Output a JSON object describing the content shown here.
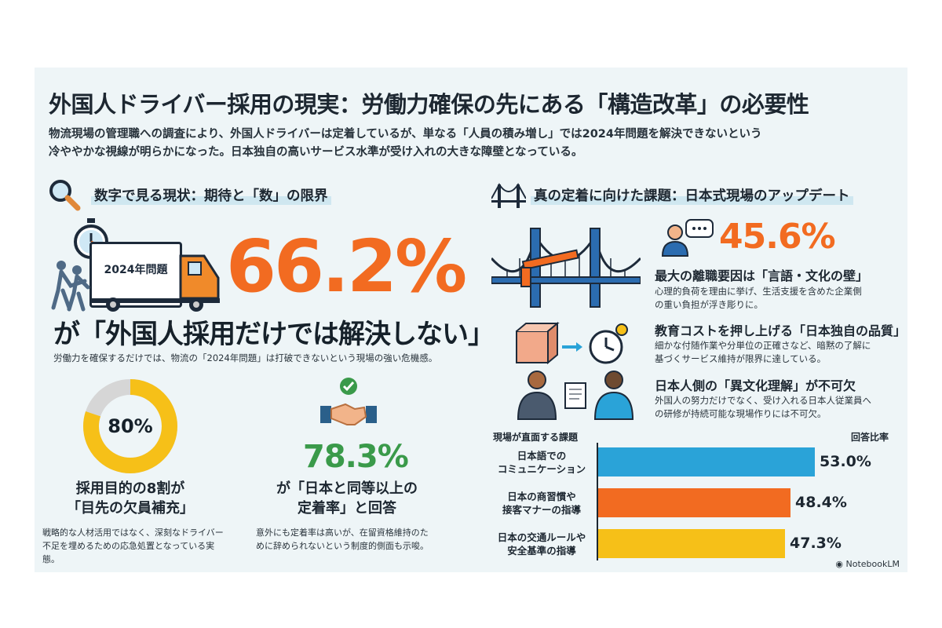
{
  "title": "外国人ドライバー採用の現実：労働力確保の先にある「構造改革」の必要性",
  "subtitle": [
    "物流現場の管理職への調査により、外国人ドライバーは定着しているが、単なる「人員の積み増し」では2024年問題を解決できないという",
    "冷ややかな視線が明らかになった。日本独自の高いサービス水準が受け入れの大きな障壁となっている。"
  ],
  "left": {
    "heading": "数字で見る現状：期待と「数」の限界",
    "truck_label": "2024年問題",
    "main_stat": "66.2%",
    "main_claim": "が「外国人採用だけでは解決しない」",
    "main_note": "労働力を確保するだけでは、物流の「2024年問題」は打破できないという現場の強い危機感。",
    "donut": {
      "value": 0.8,
      "label": "80%",
      "title": [
        "採用目的の8割が",
        "「目先の欠員補充」"
      ],
      "note": [
        "戦略的な人材活用ではなく、深刻なドライバー",
        "不足を埋めるための応急処置となっている実態。"
      ]
    },
    "retention": {
      "stat": "78.3%",
      "title": [
        "が「日本と同等以上の",
        "定着率」と回答"
      ],
      "note": [
        "意外にも定着率は高いが、在留資格維持のた",
        "めに辞められないという制度的側面も示唆。"
      ]
    }
  },
  "right": {
    "heading": "真の定着に向けた課題：日本式現場のアップデート",
    "item1": {
      "stat": "45.6%",
      "title": "最大の離職要因は「言語・文化の壁」",
      "note": [
        "心理的負荷を理由に挙げ、生活支援を含めた企業側",
        "の重い負担が浮き彫りに。"
      ]
    },
    "item2": {
      "title": "教育コストを押し上げる「日本独自の品質」",
      "note": [
        "細かな付随作業や分単位の正確さなど、暗黙の了解に",
        "基づくサービス維持が限界に達している。"
      ]
    },
    "item3": {
      "title": "日本人側の「異文化理解」が不可欠",
      "note": [
        "外国人の努力だけでなく、受け入れる日本人従業員へ",
        "の研修が持続可能な現場作りには不可欠。"
      ]
    }
  },
  "chart_data": {
    "type": "bar",
    "orientation": "horizontal",
    "category_header": "現場が直面する課題",
    "value_header": "回答比率",
    "categories": [
      [
        "日本語での",
        "コミュニケーション"
      ],
      [
        "日本の商習慣や",
        "接客マナーの指導"
      ],
      [
        "日本の交通ルールや",
        "安全基準の指導"
      ]
    ],
    "values": [
      53.0,
      48.4,
      47.3
    ],
    "value_labels": [
      "53.0%",
      "48.4%",
      "47.3%"
    ],
    "colors": [
      "#2aa3d8",
      "#f26b21",
      "#f6c018"
    ],
    "xlim": [
      0,
      53
    ]
  },
  "footer": {
    "brand": "NotebookLM"
  },
  "colors": {
    "accent_orange": "#f26b21",
    "accent_green": "#3a9a4a",
    "donut_yellow": "#f6c018",
    "donut_gray": "#d6d6d6"
  }
}
